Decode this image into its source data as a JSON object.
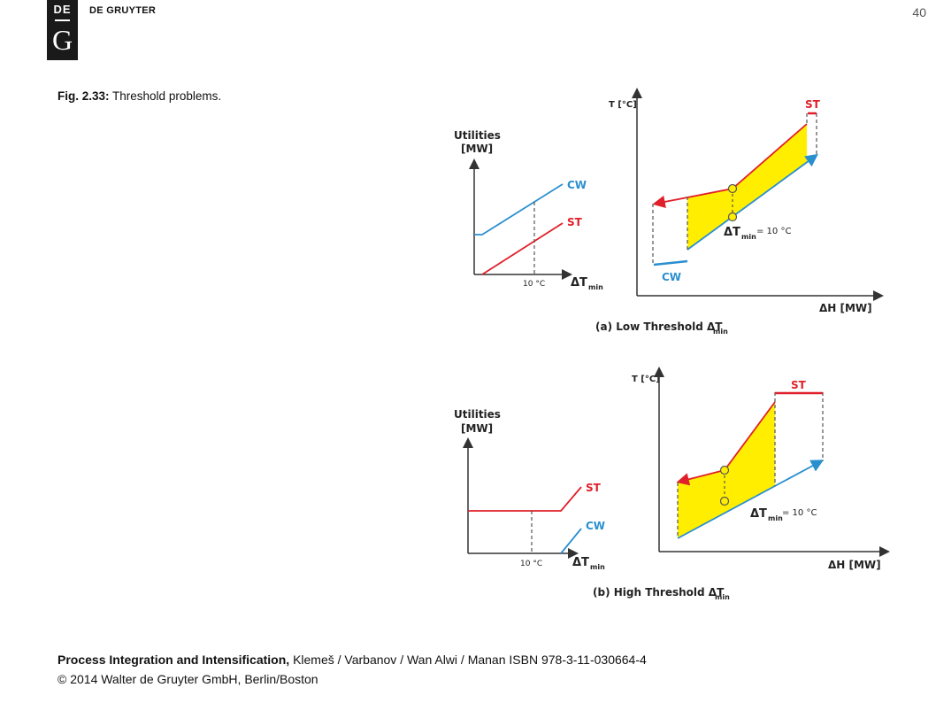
{
  "header": {
    "logo_top": "DE",
    "logo_bottom": "G",
    "publisher": "DE GRUYTER",
    "page_number": "40"
  },
  "caption": {
    "label": "Fig. 2.33:",
    "text": "Threshold problems."
  },
  "footer": {
    "title": "Process Integration and Intensification,",
    "authors": "Klemeš / Varbanov / Wan Alwi / Manan ISBN 978-3-11-030664-4",
    "copyright": "© 2014 Walter de Gruyter GmbH, Berlin/Boston"
  },
  "colors": {
    "cw": "#2a8fcf",
    "st": "#e0202a",
    "fill": "#ffee00",
    "axis": "#333333"
  },
  "diagram_a": {
    "utilities_label_line1": "Utilities",
    "utilities_label_line2": "[MW]",
    "cw_label": "CW",
    "st_label": "ST",
    "x_tick": "10 °C",
    "x_axis": "ΔT",
    "x_axis_sub": "min",
    "t_axis": "T [°C]",
    "h_axis": "ΔH [MW]",
    "st_label_right": "ST",
    "cw_label_right": "CW",
    "dtmin": "ΔT",
    "dtmin_sub": "min",
    "dtmin_value": "= 10 °C",
    "subtitle": "(a) Low Threshold ΔT",
    "subtitle_sub": "min"
  },
  "diagram_b": {
    "utilities_label_line1": "Utilities",
    "utilities_label_line2": "[MW]",
    "st_label": "ST",
    "cw_label": "CW",
    "x_tick": "10 °C",
    "x_axis": "ΔT",
    "x_axis_sub": "min",
    "t_axis": "T [°C]",
    "h_axis": "ΔH [MW]",
    "st_label_right": "ST",
    "dtmin": "ΔT",
    "dtmin_sub": "min",
    "dtmin_value": "= 10 °C",
    "subtitle": "(b) High Threshold ΔT",
    "subtitle_sub": "min"
  }
}
